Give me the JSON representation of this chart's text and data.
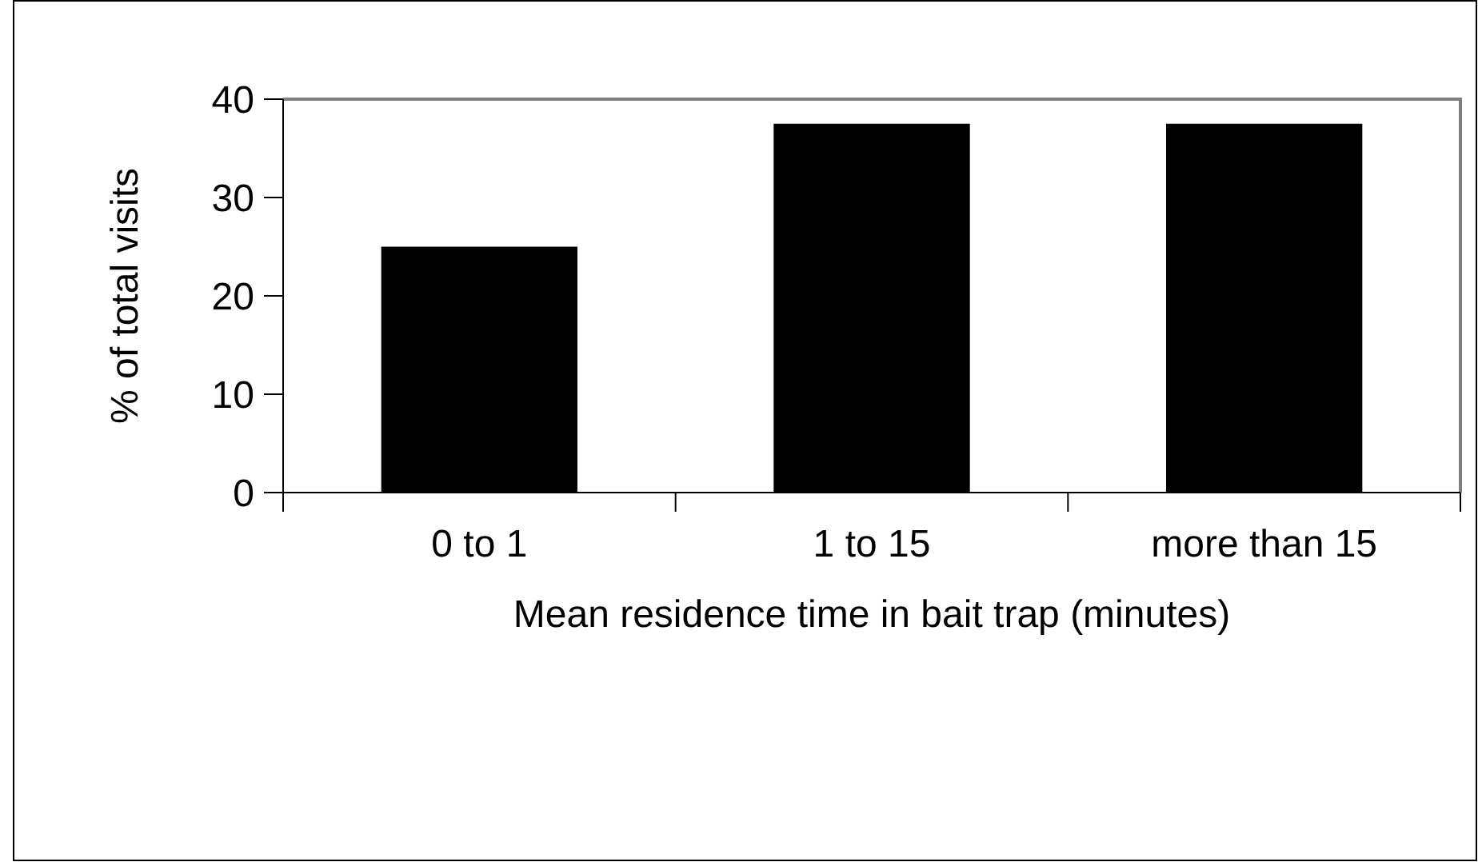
{
  "chart_data": {
    "type": "bar",
    "xlabel": "Mean residence time in bait trap (minutes)",
    "ylabel": "% of total visits",
    "categories": [
      "0 to 1",
      "1 to 15",
      "more than 15"
    ],
    "values": [
      25,
      37.5,
      37.5
    ],
    "color": "#000000",
    "ylim": [
      0,
      40
    ],
    "yticks": [
      0,
      10,
      20,
      30,
      40
    ],
    "grid": false
  }
}
